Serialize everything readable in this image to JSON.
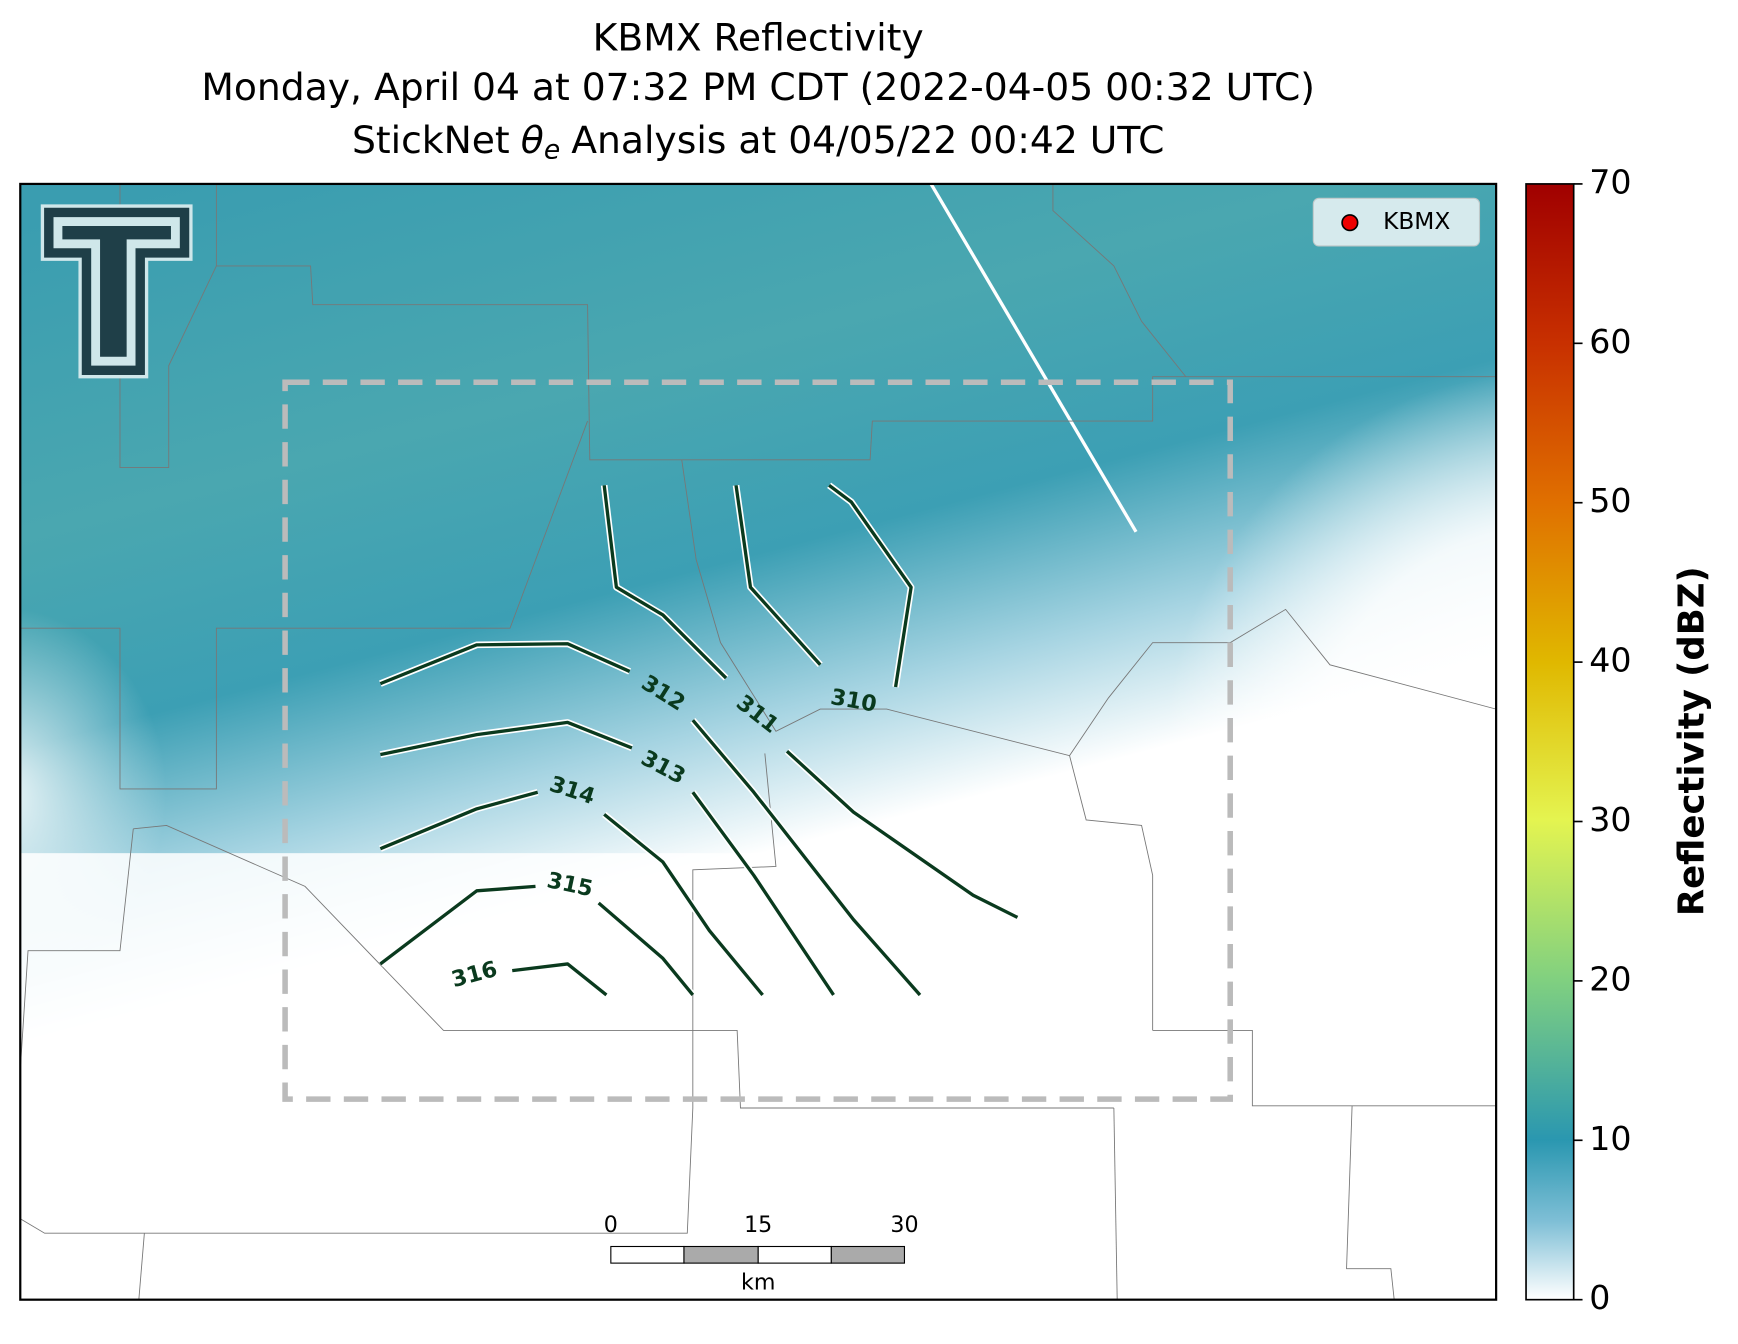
{
  "title": {
    "line1": "KBMX Reflectivity",
    "line2": "Monday, April 04 at 07:32 PM CDT (2022-04-05 00:32 UTC)",
    "line3_prefix": "StickNet",
    "line3_symbol": "θ",
    "line3_subscript": "e",
    "line3_suffix": "Analysis at 04/05/22 00:42 UTC"
  },
  "legend": {
    "label": "KBMX"
  },
  "contours": [
    310,
    311,
    312,
    313,
    314,
    315,
    316
  ],
  "scale_bar": {
    "ticks": [
      0,
      15,
      30
    ],
    "unit": "km"
  },
  "colorbar": {
    "label": "Reflectivity (dBZ)",
    "lim": [
      0,
      70
    ],
    "ticks": [
      0,
      10,
      20,
      30,
      40,
      50,
      60,
      70
    ]
  }
}
